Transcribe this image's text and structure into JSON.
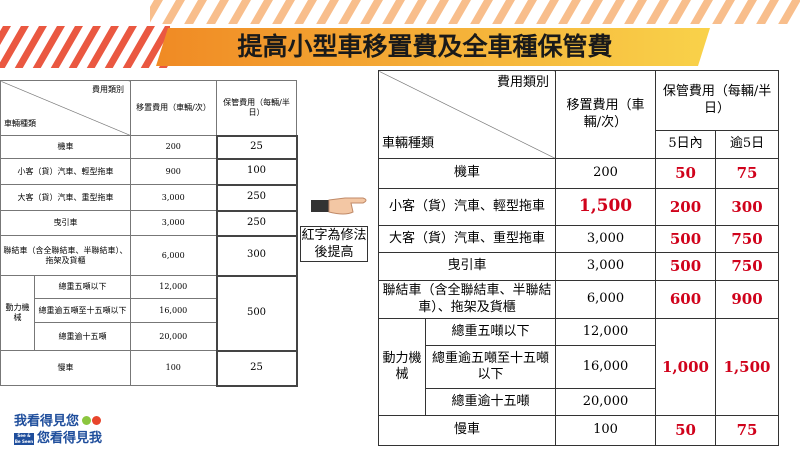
{
  "title": "提高小型車移置費及全車種保管費",
  "note": "紅字為修法後提高",
  "old_table": {
    "header": {
      "category_type": "費用類別",
      "vehicle_type": "車輛種類",
      "columns": [
        "移置費用（車輛/次）",
        "保管費用（每輛/半日）"
      ]
    },
    "rows": [
      [
        "機車",
        "200",
        "25"
      ],
      [
        "小客（貨）汽車、輕型拖車",
        "900",
        "100"
      ],
      [
        "大客（貨）汽車、重型拖車",
        "3,000",
        "250"
      ],
      [
        "曳引車",
        "3,000",
        "250"
      ],
      [
        "聯結車（含全聯結車、半聯結車）、拖架及貨櫃",
        "6,000",
        "300"
      ]
    ],
    "power_machinery": {
      "label": "動力機械",
      "rows": [
        [
          "總重五噸以下",
          "12,000"
        ],
        [
          "總重逾五噸至十五噸以下",
          "16,000"
        ],
        [
          "總重逾十五噸",
          "20,000"
        ]
      ],
      "storage": "500"
    },
    "last_row": [
      "慢車",
      "100",
      "25"
    ]
  },
  "new_table": {
    "header": {
      "category_type": "費用類別",
      "vehicle_type": "車輛種類",
      "move_fee": "移置費用（車輛/次）",
      "storage_fee": "保管費用（每輛/半日）",
      "storage_columns": [
        "5日內",
        "逾5日"
      ]
    },
    "rows": [
      [
        "機車",
        "200",
        "50",
        "75"
      ],
      [
        "小客（貨）汽車、輕型拖車",
        "1,500",
        "200",
        "300"
      ],
      [
        "大客（貨）汽車、重型拖車",
        "3,000",
        "500",
        "750"
      ],
      [
        "曳引車",
        "3,000",
        "500",
        "750"
      ],
      [
        "聯結車（含全聯結車、半聯結車）、拖架及貨櫃",
        "6,000",
        "600",
        "900"
      ]
    ],
    "power_machinery": {
      "label": "動力機械",
      "rows": [
        [
          "總重五噸以下",
          "12,000"
        ],
        [
          "總重逾五噸至十五噸以下",
          "16,000"
        ],
        [
          "總重逾十五噸",
          "20,000"
        ]
      ],
      "storage": [
        "1,000",
        "1,500"
      ]
    },
    "last_row": [
      "慢車",
      "100",
      "50",
      "75"
    ]
  },
  "logo": {
    "line1": "我看得見您",
    "badge": "See & Be Seen",
    "line2": "您看得見我"
  }
}
